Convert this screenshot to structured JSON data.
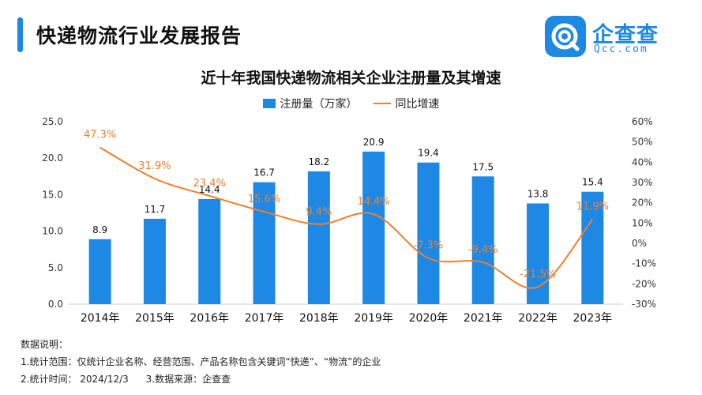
{
  "header": {
    "title": "快递物流行业发展报告",
    "accent_color": "#1e88e5"
  },
  "logo": {
    "name": "企查查",
    "domain": "Qcc.com",
    "icon": "qcc-logo-icon",
    "color": "#1e88e5"
  },
  "chart_data": {
    "type": "bar",
    "title": "近十年我国快递物流相关企业注册量及其增速",
    "categories": [
      "2014年",
      "2015年",
      "2016年",
      "2017年",
      "2018年",
      "2019年",
      "2020年",
      "2021年",
      "2022年",
      "2023年"
    ],
    "series": [
      {
        "name": "注册量（万家）",
        "type": "bar",
        "axis": "left",
        "color": "#1e88e5",
        "values": [
          8.9,
          11.7,
          14.4,
          16.7,
          18.2,
          20.9,
          19.4,
          17.5,
          13.8,
          15.4
        ],
        "labels": [
          "8.9",
          "11.7",
          "14.4",
          "16.7",
          "18.2",
          "20.9",
          "19.4",
          "17.5",
          "13.8",
          "15.4"
        ]
      },
      {
        "name": "同比增速",
        "type": "line",
        "axis": "right",
        "color": "#f07f2a",
        "values": [
          47.3,
          31.9,
          23.4,
          15.6,
          9.4,
          14.4,
          -7.3,
          -9.4,
          -21.5,
          11.9
        ],
        "labels": [
          "47.3%",
          "31.9%",
          "23.4%",
          "15.6%",
          "9.4%",
          "14.4%",
          "-7.3%",
          "-9.4%",
          "-21.5%",
          "11.9%"
        ]
      }
    ],
    "y_left": {
      "range": [
        0,
        25
      ],
      "ticks": [
        0,
        5,
        10,
        15,
        20,
        25
      ],
      "tick_labels": [
        "0.0",
        "5.0",
        "10.0",
        "15.0",
        "20.0",
        "25.0"
      ]
    },
    "y_right": {
      "range": [
        -30,
        60
      ],
      "ticks": [
        -30,
        -20,
        -10,
        0,
        10,
        20,
        30,
        40,
        50,
        60
      ],
      "tick_labels": [
        "-30%",
        "-20%",
        "-10%",
        "0%",
        "10%",
        "20%",
        "30%",
        "40%",
        "50%",
        "60%"
      ]
    },
    "grid": false,
    "legend_position": "top-center"
  },
  "notes": {
    "heading": "数据说明：",
    "scope": "1.统计范围：仅统计企业名称、经营范围、产品名称包含关键词“快递”、“物流”的企业",
    "time": "2.统计时间：  2024/12/3",
    "source": "3.数据来源：企查查"
  }
}
